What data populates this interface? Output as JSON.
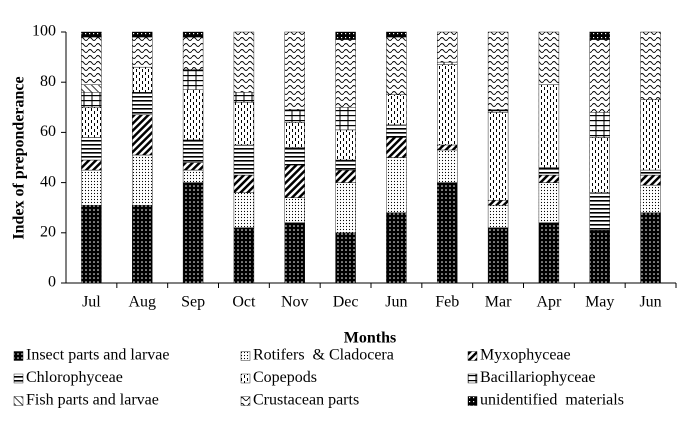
{
  "chart_data": {
    "type": "stacked_bar",
    "ylabel": "Index of preponderance",
    "xlabel": "Months",
    "categories": [
      "Jul",
      "Aug",
      "Sep",
      "Oct",
      "Nov",
      "Dec",
      "Jun",
      "Feb",
      "Mar",
      "Apr",
      "May",
      "Jun"
    ],
    "ylim": [
      0,
      100
    ],
    "yticks": [
      0,
      20,
      40,
      60,
      80,
      100
    ],
    "grid": false,
    "series": [
      {
        "name": "Insect parts and larvae",
        "color": "#000000",
        "values": [
          31,
          31,
          40,
          22,
          24,
          20,
          28,
          40,
          22,
          24,
          21,
          28
        ]
      },
      {
        "name": "Rotifers  & Cladocera",
        "color": "#000000",
        "values": [
          14,
          20,
          5,
          14,
          10,
          20,
          22,
          13,
          9,
          16,
          0,
          11
        ]
      },
      {
        "name": "Myxophyceae",
        "color": "#000000",
        "values": [
          4,
          16,
          3,
          7,
          13,
          5,
          8,
          2,
          2,
          3,
          0,
          4
        ]
      },
      {
        "name": "Chlorophyceae",
        "color": "#000000",
        "values": [
          9,
          9,
          9,
          12,
          7,
          4,
          5,
          0,
          0,
          3,
          15,
          2
        ]
      },
      {
        "name": "Copepods",
        "color": "#000000",
        "values": [
          12,
          10,
          20,
          17,
          10,
          12,
          12,
          32,
          35,
          33,
          22,
          28
        ]
      },
      {
        "name": "Bacillariophyceae",
        "color": "#000000",
        "values": [
          6,
          0,
          8,
          4,
          5,
          9,
          0,
          1,
          1,
          0,
          10,
          0
        ]
      },
      {
        "name": "Fish parts and larvae",
        "color": "#000000",
        "values": [
          3,
          0,
          0,
          0,
          0,
          0,
          0,
          0,
          0,
          0,
          0,
          0
        ]
      },
      {
        "name": "Crustacean parts",
        "color": "#000000",
        "values": [
          19,
          12,
          13,
          24,
          31,
          27,
          23,
          12,
          31,
          21,
          29,
          27
        ]
      },
      {
        "name": "unidentified  materials",
        "color": "#000000",
        "values": [
          2,
          2,
          2,
          0,
          0,
          3,
          2,
          0,
          0,
          0,
          3,
          0
        ]
      }
    ]
  }
}
